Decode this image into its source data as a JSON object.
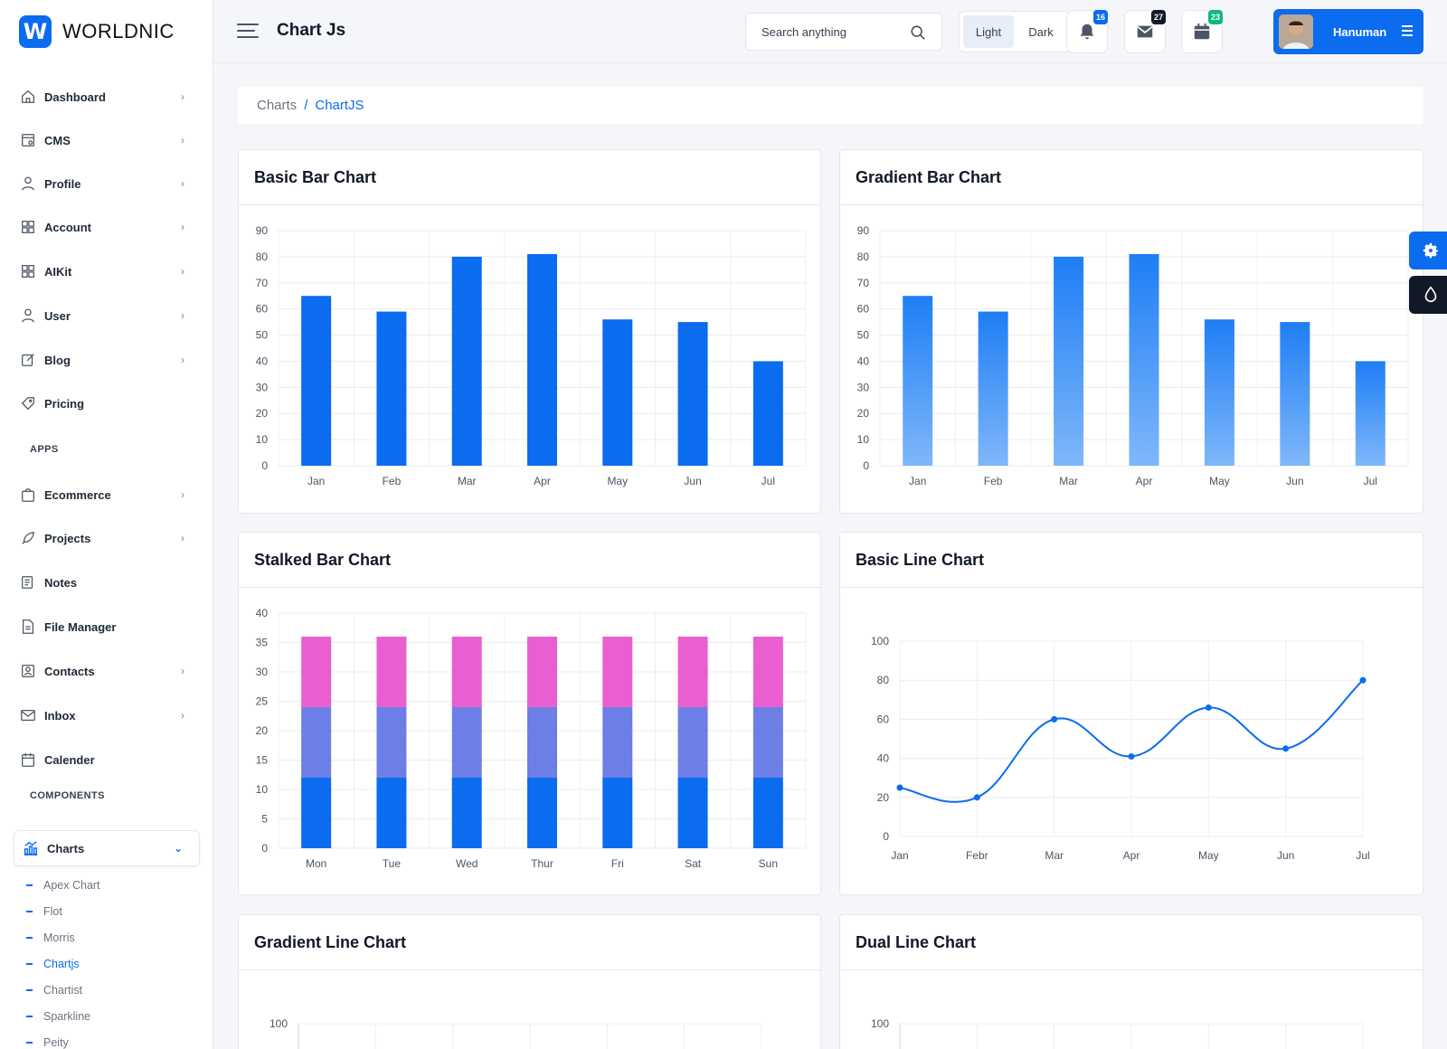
{
  "brand": {
    "name": "WORLDNIC",
    "mark": "W"
  },
  "colors": {
    "accent": "#0b6cf0",
    "pink": "#e95fd0",
    "purple": "#6c7fe6",
    "gradient_top": "#1e7ef5",
    "gradient_bottom": "#7fb7fa"
  },
  "sidebar": {
    "items": [
      {
        "label": "Dashboard",
        "icon": "home-icon",
        "has_children": true
      },
      {
        "label": "CMS",
        "icon": "cms-icon",
        "has_children": true
      },
      {
        "label": "Profile",
        "icon": "user-icon",
        "has_children": true
      },
      {
        "label": "Account",
        "icon": "grid-icon",
        "has_children": true
      },
      {
        "label": "AIKit",
        "icon": "grid-icon",
        "has_children": true
      },
      {
        "label": "User",
        "icon": "user-icon",
        "has_children": true
      },
      {
        "label": "Blog",
        "icon": "edit-icon",
        "has_children": true
      },
      {
        "label": "Pricing",
        "icon": "tag-icon",
        "has_children": false
      }
    ],
    "apps_label": "APPS",
    "apps": [
      {
        "label": "Ecommerce",
        "icon": "bag-icon",
        "has_children": true
      },
      {
        "label": "Projects",
        "icon": "rocket-icon",
        "has_children": true
      },
      {
        "label": "Notes",
        "icon": "note-icon",
        "has_children": false
      },
      {
        "label": "File Manager",
        "icon": "file-icon",
        "has_children": false
      },
      {
        "label": "Contacts",
        "icon": "contact-icon",
        "has_children": true
      },
      {
        "label": "Inbox",
        "icon": "mail-icon",
        "has_children": true
      },
      {
        "label": "Calender",
        "icon": "calendar-icon",
        "has_children": false
      }
    ],
    "components_label": "COMPONENTS",
    "active_group": {
      "label": "Charts",
      "icon": "chart-icon"
    },
    "sub_items": [
      "Apex Chart",
      "Flot",
      "Morris",
      "Chartjs",
      "Chartist",
      "Sparkline",
      "Peity"
    ],
    "active_sub": "Chartjs"
  },
  "header": {
    "title": "Chart Js",
    "search_placeholder": "Search anything",
    "mode_light": "Light",
    "mode_dark": "Dark",
    "notifications_count": "16",
    "messages_count": "27",
    "calendar_count": "23",
    "user_name": "Hanuman"
  },
  "breadcrumb": {
    "parent": "Charts",
    "separator": "/",
    "current": "ChartJS"
  },
  "cards": {
    "basic_bar": "Basic Bar Chart",
    "gradient_bar": "Gradient Bar Chart",
    "stacked_bar": "Stalked Bar Chart",
    "basic_line": "Basic Line Chart",
    "gradient_line": "Gradient Line Chart",
    "dual_line": "Dual Line Chart"
  },
  "chart_data": [
    {
      "id": "basic_bar",
      "type": "bar",
      "title": "Basic Bar Chart",
      "categories": [
        "Jan",
        "Feb",
        "Mar",
        "Apr",
        "May",
        "Jun",
        "Jul"
      ],
      "values": [
        65,
        59,
        80,
        81,
        56,
        55,
        40
      ],
      "ylim": [
        0,
        90
      ],
      "yticks": [
        0,
        10,
        20,
        30,
        40,
        50,
        60,
        70,
        80,
        90
      ],
      "color": "#0b6cf0",
      "grid": true
    },
    {
      "id": "gradient_bar",
      "type": "bar",
      "title": "Gradient Bar Chart",
      "categories": [
        "Jan",
        "Feb",
        "Mar",
        "Apr",
        "May",
        "Jun",
        "Jul"
      ],
      "values": [
        65,
        59,
        80,
        81,
        56,
        55,
        40
      ],
      "ylim": [
        0,
        90
      ],
      "yticks": [
        0,
        10,
        20,
        30,
        40,
        50,
        60,
        70,
        80,
        90
      ],
      "color": "gradient",
      "grid": true
    },
    {
      "id": "stacked_bar",
      "type": "bar",
      "title": "Stalked Bar Chart",
      "stacked": true,
      "categories": [
        "Mon",
        "Tue",
        "Wed",
        "Thur",
        "Fri",
        "Sat",
        "Sun"
      ],
      "series": [
        {
          "values": [
            12,
            12,
            12,
            12,
            12,
            12,
            12
          ],
          "color": "#0b6cf0"
        },
        {
          "values": [
            12,
            12,
            12,
            12,
            12,
            12,
            12
          ],
          "color": "#6c7fe6"
        },
        {
          "values": [
            12,
            12,
            12,
            12,
            12,
            12,
            12
          ],
          "color": "#e95fd0"
        }
      ],
      "ylim": [
        0,
        40
      ],
      "yticks": [
        0,
        5,
        10,
        15,
        20,
        25,
        30,
        35,
        40
      ],
      "grid": true
    },
    {
      "id": "basic_line",
      "type": "line",
      "title": "Basic Line Chart",
      "categories": [
        "Jan",
        "Febr",
        "Mar",
        "Apr",
        "May",
        "Jun",
        "Jul"
      ],
      "values": [
        25,
        20,
        60,
        41,
        66,
        45,
        80
      ],
      "ylim": [
        0,
        100
      ],
      "yticks": [
        0,
        20,
        40,
        60,
        80,
        100
      ],
      "color": "#0b6cf0",
      "grid": true
    },
    {
      "id": "gradient_line",
      "type": "line",
      "title": "Gradient Line Chart",
      "yticks": [
        100
      ],
      "grid": true
    },
    {
      "id": "dual_line",
      "type": "line",
      "title": "Dual Line Chart",
      "yticks": [
        100
      ],
      "grid": true
    }
  ]
}
